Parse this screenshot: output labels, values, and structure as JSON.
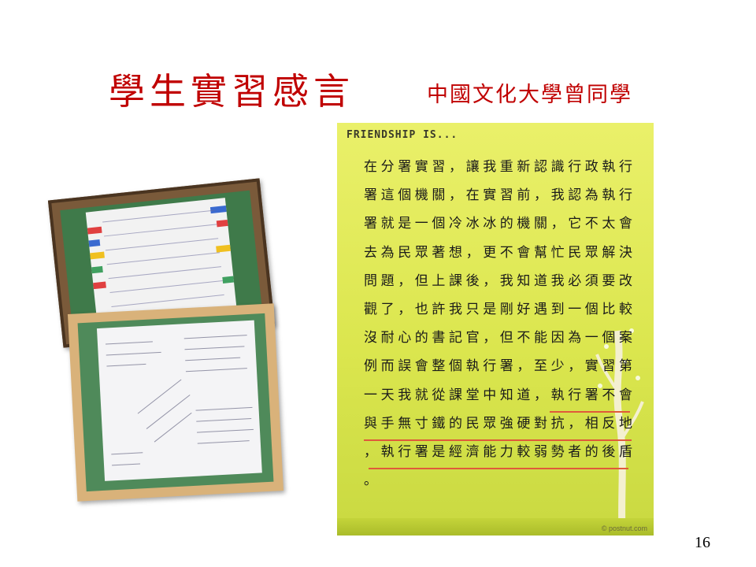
{
  "slide": {
    "title": "學生實習感言",
    "subtitle": "中國文化大學曾同學",
    "page_number": "16"
  },
  "card": {
    "heading": "FRIENDSHIP IS...",
    "body": "在分署實習，讓我重新認識行政執行\n署這個機關，在實習前，我認為執行\n署就是一個冷冰冰的機關，它不太會\n去為民眾著想，更不會幫忙民眾解決\n問題，但上課後，我知道我必須要改\n觀了，也許我只是剛好遇到一個比較\n沒耐心的書記官，但不能因為一個案\n例而誤會整個執行署，至少，實習第\n一天我就從課堂中知道，執行署不會\n與手無寸鐵的民眾強硬對抗，相反地\n，執行署是經濟能力較弱勢者的後盾\n。",
    "watermark": "© postnut.com"
  },
  "photos": {
    "photo1_alt": "handwritten thank-you note on green board",
    "photo2_alt": "handwritten messages on paper in wooden frame"
  },
  "colors": {
    "title": "#c00000",
    "card_bg": "#dbe64e",
    "underline": "#e05a3a"
  }
}
